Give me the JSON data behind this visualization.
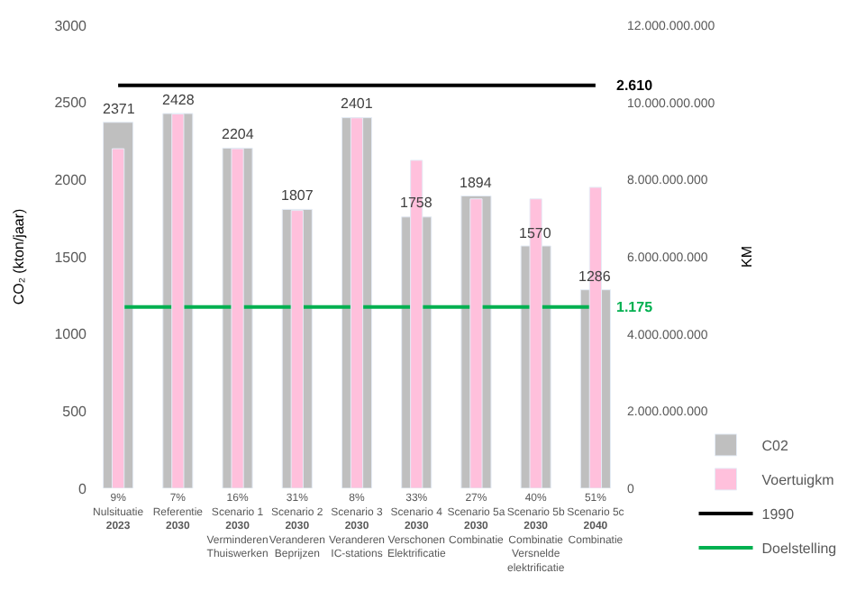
{
  "chart_data": {
    "type": "bar",
    "ylabel": "CO₂ (kton/jaar)",
    "y2label": "KM",
    "categories": [
      "9%\nNulsituatie\n2023",
      "7%\nReferentie\n2030",
      "16%\nScenario 1\n2030\nVerminderen\nThuiswerken",
      "31%\nScenario 2\n2030\nVeranderen\nBeprijzen",
      "8%\nScenario 3\n2030\nVeranderen\nIC-stations",
      "33%\nScenario 4\n2030\nVerschonen\nElektrificatie",
      "27%\nScenario 5a\n2030\nCombinatie",
      "40%\nScenario 5b\n2030\nCombinatie\nVersnelde\nelektrificatie",
      "51%\nScenario 5c\n2040\nCombinatie"
    ],
    "series": [
      {
        "name": "C02",
        "color": "#bfbfbf",
        "values": [
          2371,
          2428,
          2204,
          1807,
          2401,
          1758,
          1894,
          1570,
          1286
        ],
        "value_labels": [
          "2371",
          "2428",
          "2204",
          "1807",
          "2401",
          "1758",
          "1894",
          "1570",
          "1286"
        ]
      },
      {
        "name": "Voertuigkm",
        "axis": "y2",
        "color": "#ffc0dc",
        "values": [
          8800000000,
          9700000000,
          8800000000,
          7200000000,
          9600000000,
          8500000000,
          7500000000,
          7500000000,
          7800000000
        ]
      },
      {
        "name": "1990",
        "type": "line",
        "color": "#000000",
        "values": [
          2610,
          2610,
          2610,
          2610,
          2610,
          2610,
          2610,
          2610,
          2610
        ],
        "value_labels": [
          null,
          null,
          null,
          null,
          null,
          null,
          null,
          null,
          "2.610"
        ]
      },
      {
        "name": "Doelstelling",
        "type": "line",
        "color": "#00b050",
        "values": [
          1175,
          1175,
          1175,
          1175,
          1175,
          1175,
          1175,
          1175,
          1175
        ],
        "value_labels": [
          null,
          null,
          null,
          null,
          null,
          null,
          null,
          null,
          "1.175"
        ]
      }
    ],
    "ylim": [
      0,
      3000
    ],
    "yticks": [
      0,
      500,
      1000,
      1500,
      2000,
      2500,
      3000
    ],
    "y2lim": [
      0,
      12000000000
    ],
    "y2ticks": [
      {
        "value": 0,
        "label": "0"
      },
      {
        "value": 2000000000,
        "label": "2.000.000.000"
      },
      {
        "value": 4000000000,
        "label": "4.000.000.000"
      },
      {
        "value": 6000000000,
        "label": "6.000.000.000"
      },
      {
        "value": 8000000000,
        "label": "8.000.000.000"
      },
      {
        "value": 10000000000,
        "label": "10.000.000.000"
      },
      {
        "value": 12000000000,
        "label": "12.000.000.000"
      }
    ],
    "legend": "bottom right"
  }
}
